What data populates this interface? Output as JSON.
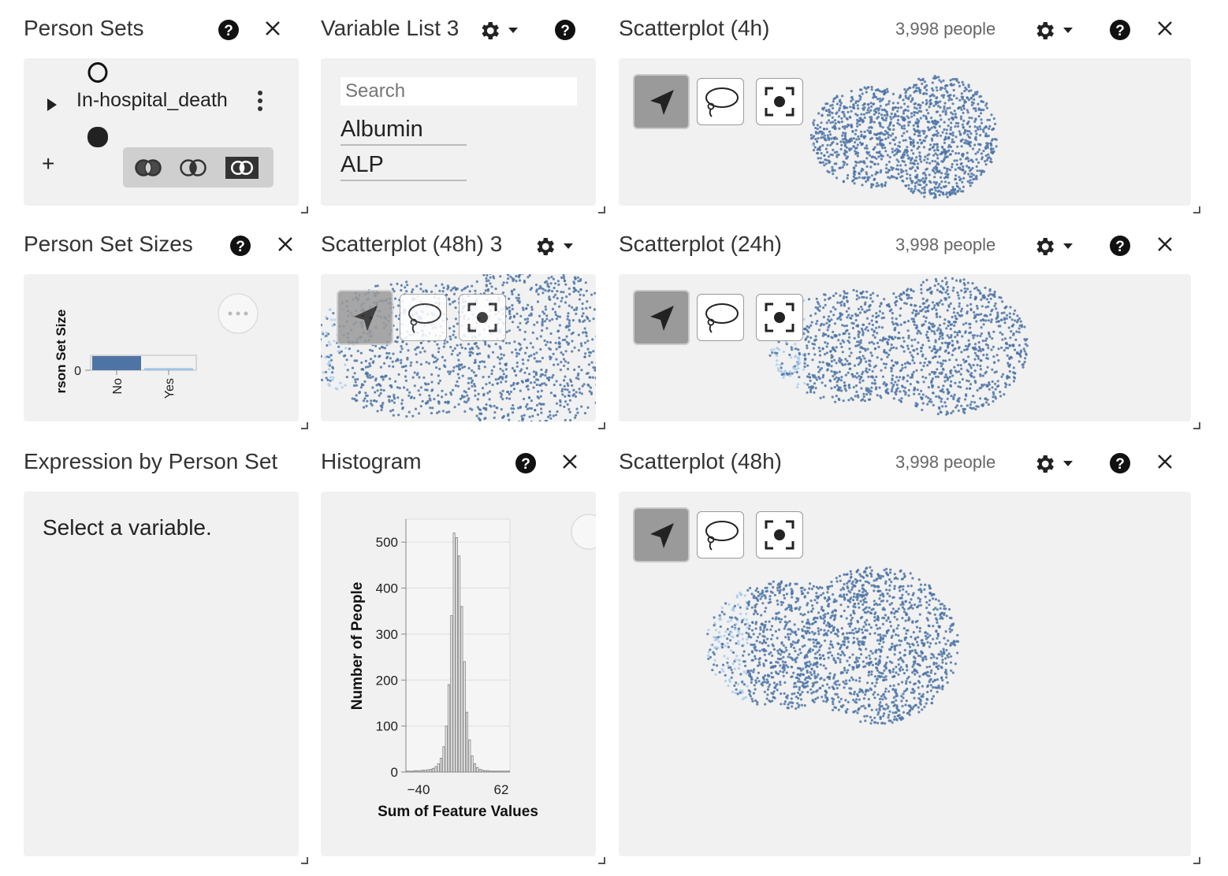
{
  "person_sets": {
    "title": "Person Sets",
    "set_name": "In-hospital_death",
    "add_label": "+"
  },
  "variable_list": {
    "title": "Variable List 3",
    "search_placeholder": "Search",
    "items": [
      "Albumin",
      "ALP"
    ]
  },
  "scatter_4h": {
    "title": "Scatterplot (4h)",
    "people": "3,998 people"
  },
  "set_sizes": {
    "title": "Person Set Sizes",
    "ylabel": "rson Set Size",
    "zero_tick": "0",
    "categories": [
      "No",
      "Yes"
    ],
    "values": [
      1,
      0.15
    ],
    "colors": [
      "#4e74a6",
      "#9ec5e8"
    ]
  },
  "scatter_48h_small": {
    "title": "Scatterplot (48h) 3"
  },
  "scatter_24h": {
    "title": "Scatterplot (24h)",
    "people": "3,998 people"
  },
  "expression": {
    "title": "Expression by Person Set",
    "message": "Select a variable."
  },
  "histogram": {
    "title": "Histogram",
    "chart_data": {
      "type": "bar",
      "xlabel": "Sum of Feature Values",
      "ylabel": "Number of People",
      "x_ticks": [
        "−40",
        "62"
      ],
      "y_ticks": [
        "0",
        "100",
        "200",
        "300",
        "400",
        "500"
      ],
      "ylim": [
        0,
        550
      ],
      "values": [
        2,
        2,
        2,
        3,
        3,
        3,
        4,
        4,
        5,
        6,
        8,
        12,
        18,
        30,
        55,
        100,
        190,
        340,
        520,
        510,
        470,
        360,
        240,
        130,
        70,
        35,
        18,
        10,
        6,
        4,
        3,
        3,
        2,
        2,
        2,
        2,
        2,
        2,
        2,
        2
      ]
    }
  },
  "scatter_48h": {
    "title": "Scatterplot (48h)",
    "people": "3,998 people"
  },
  "colors": {
    "point": "#4e74a6",
    "point_light": "#a8cdee",
    "panel_bg": "#f1f1f1"
  },
  "icons": [
    "help-icon",
    "close-icon",
    "gear-icon",
    "chevron-down-icon",
    "pointer-icon",
    "lasso-icon",
    "recenter-icon",
    "more-icon"
  ]
}
